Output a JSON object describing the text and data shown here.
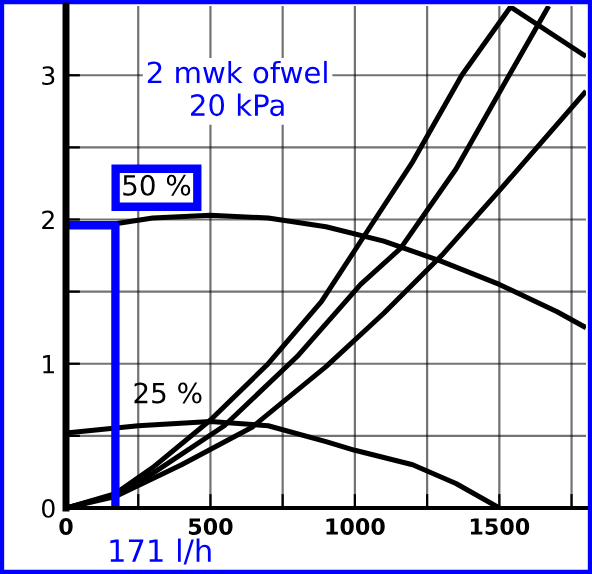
{
  "chart_data": {
    "type": "line",
    "xlim": [
      0,
      1800
    ],
    "ylim": [
      0,
      3.48
    ],
    "xticks": [
      0,
      {
        "value": 250,
        "label": null
      },
      500,
      {
        "value": 750,
        "label": null
      },
      1000,
      {
        "value": 1250,
        "label": null
      },
      1500,
      {
        "value": 1750,
        "label": null
      }
    ],
    "yticks": [
      0,
      {
        "value": 0.5,
        "label": null
      },
      1,
      {
        "value": 1.5,
        "label": null
      },
      2,
      {
        "value": 2.5,
        "label": null
      },
      3
    ],
    "grid": true,
    "series": [
      {
        "name": "50 %",
        "color": "#000000",
        "x": [
          171,
          300,
          500,
          700,
          900,
          1100,
          1300,
          1500,
          1700,
          1800
        ],
        "values": [
          1.97,
          2.01,
          2.03,
          2.01,
          1.95,
          1.85,
          1.71,
          1.55,
          1.36,
          1.25
        ]
      },
      {
        "name": "25 %",
        "color": "#000000",
        "x": [
          0,
          250,
          500,
          700,
          900,
          1000,
          1200,
          1350,
          1500
        ],
        "values": [
          0.52,
          0.57,
          0.6,
          0.57,
          0.46,
          0.4,
          0.3,
          0.17,
          0
        ]
      },
      {
        "color": "#000000",
        "x": [
          0,
          171,
          300,
          500,
          700,
          884,
          1027,
          1200,
          1370,
          1541
        ],
        "values": [
          0,
          0.1,
          0.28,
          0.61,
          1.0,
          1.43,
          1.87,
          2.4,
          3.0,
          3.48
        ]
      },
      {
        "color": "#000000",
        "x": [
          0,
          171,
          300,
          548,
          800,
          1020,
          1158,
          1350,
          1534,
          1671
        ],
        "values": [
          0,
          0.09,
          0.24,
          0.57,
          1.05,
          1.55,
          1.8,
          2.35,
          3.0,
          3.48
        ]
      },
      {
        "color": "#000000",
        "x": [
          0,
          171,
          400,
          644,
          900,
          1100,
          1300,
          1500,
          1800
        ],
        "values": [
          0,
          0.08,
          0.3,
          0.56,
          0.98,
          1.35,
          1.75,
          2.2,
          2.89
        ]
      },
      {
        "color": "#000000",
        "x": [
          1534,
          1800
        ],
        "values": [
          3.48,
          3.13
        ]
      },
      {
        "color": "#0000ff",
        "x": [
          0,
          171,
          171
        ],
        "values": [
          1.96,
          1.96,
          0
        ]
      }
    ],
    "annotations": [
      "2 mwk ofwel\n20 kPa",
      {
        "text": "171 l/h",
        "x": 171,
        "y": 0
      }
    ]
  }
}
